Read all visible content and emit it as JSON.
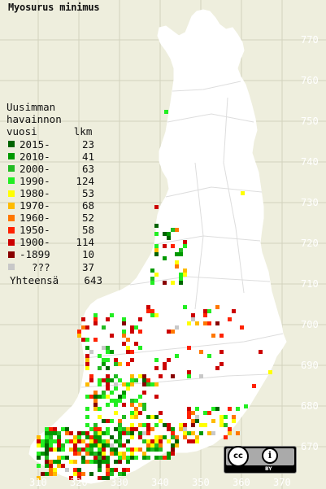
{
  "title": "Myosurus minimus",
  "legend": {
    "header": [
      "Uusimman",
      "havainnon",
      "vuosi      lkm"
    ],
    "rows": [
      {
        "label": "2015-",
        "count": "23",
        "color": "#006400"
      },
      {
        "label": "2010-",
        "count": "41",
        "color": "#009900"
      },
      {
        "label": "2000-",
        "count": "63",
        "color": "#22bb22"
      },
      {
        "label": "1990-",
        "count": "124",
        "color": "#22ee22"
      },
      {
        "label": "1980-",
        "count": "53",
        "color": "#ffff00"
      },
      {
        "label": "1970-",
        "count": "68",
        "color": "#ffbb00"
      },
      {
        "label": "1960-",
        "count": "52",
        "color": "#ff7700"
      },
      {
        "label": "1950-",
        "count": "58",
        "color": "#ff2200"
      },
      {
        "label": "1900-",
        "count": "114",
        "color": "#cc0000"
      },
      {
        "label": "-1899",
        "count": "10",
        "color": "#880000"
      },
      {
        "label": "???",
        "count": "37",
        "color": "#c8c8c8"
      }
    ],
    "total_label": "Yhteensä",
    "total_count": "643"
  },
  "axes": {
    "x_ticks": [
      "310",
      "320",
      "330",
      "340",
      "350",
      "360",
      "370"
    ],
    "y_ticks": [
      "770",
      "760",
      "750",
      "740",
      "730",
      "720",
      "710",
      "700",
      "690",
      "680",
      "670"
    ]
  },
  "license": {
    "cc": "cc",
    "attribution": "i",
    "by": "BY"
  },
  "colors": {
    "background": "#eeeedd",
    "land": "#ffffff",
    "grid": "#c8c8b4",
    "labels": "#ffffff"
  }
}
